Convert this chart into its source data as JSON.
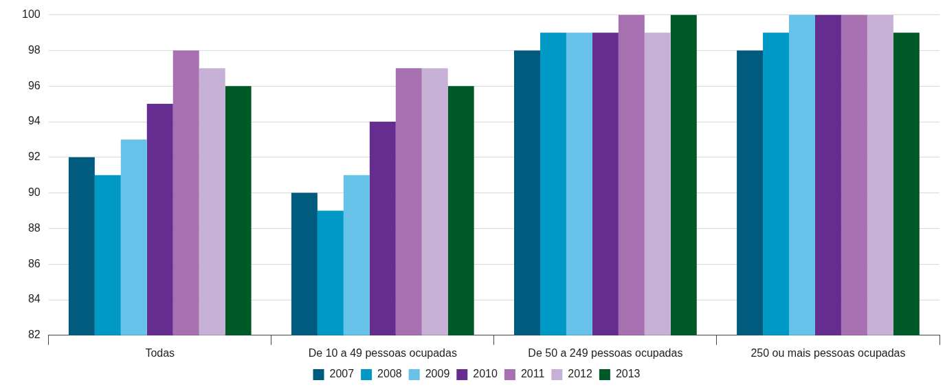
{
  "chart_data": {
    "type": "bar",
    "categories": [
      "Todas",
      "De 10 a 49 pessoas ocupadas",
      "De 50 a 249 pessoas ocupadas",
      "250 ou mais pessoas ocupadas"
    ],
    "series": [
      {
        "name": "2007",
        "color": "#005b7f",
        "values": [
          92,
          90,
          98,
          98
        ]
      },
      {
        "name": "2008",
        "color": "#0099c5",
        "values": [
          91,
          89,
          99,
          99
        ]
      },
      {
        "name": "2009",
        "color": "#66c2e8",
        "values": [
          93,
          91,
          99,
          100
        ]
      },
      {
        "name": "2010",
        "color": "#662d91",
        "values": [
          95,
          94,
          99,
          100
        ]
      },
      {
        "name": "2011",
        "color": "#a770b0",
        "values": [
          98,
          97,
          100,
          100
        ]
      },
      {
        "name": "2012",
        "color": "#c6b0d6",
        "values": [
          97,
          97,
          99,
          100
        ]
      },
      {
        "name": "2013",
        "color": "#005a28",
        "values": [
          96,
          96,
          100,
          99
        ]
      }
    ],
    "ylim": [
      82,
      100
    ],
    "yticks": [
      82,
      84,
      86,
      88,
      90,
      92,
      94,
      96,
      98,
      100
    ],
    "grid": "y",
    "legend": "bottom"
  }
}
